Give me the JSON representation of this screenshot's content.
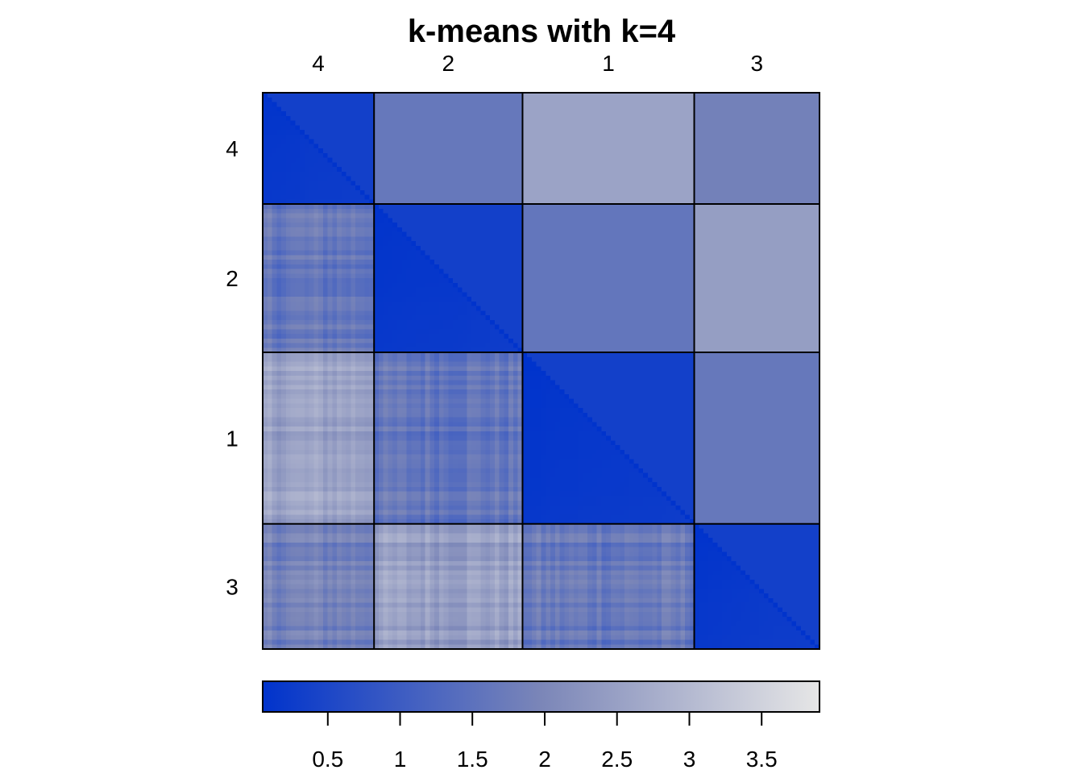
{
  "chart_data": {
    "type": "heatmap",
    "title": "k-means with k=4",
    "cluster_order": [
      "4",
      "2",
      "1",
      "3"
    ],
    "cluster_sizes": [
      24,
      32,
      37,
      27
    ],
    "block_mean_distance": [
      [
        0.35,
        1.65,
        2.55,
        1.85
      ],
      [
        1.65,
        0.35,
        1.6,
        2.45
      ],
      [
        2.55,
        1.6,
        0.35,
        1.65
      ],
      [
        1.85,
        2.45,
        1.65,
        0.35
      ]
    ],
    "lower_triangle": "full pairwise distances",
    "upper_triangle": "block mean distance",
    "colorbar": {
      "min": 0.05,
      "max": 3.9,
      "ticks": [
        "0.5",
        "1",
        "1.5",
        "2",
        "2.5",
        "3",
        "3.5"
      ],
      "low_color": "#0033cc",
      "mid_color": "#7b86b8",
      "high_color": "#e6e6e6"
    }
  }
}
